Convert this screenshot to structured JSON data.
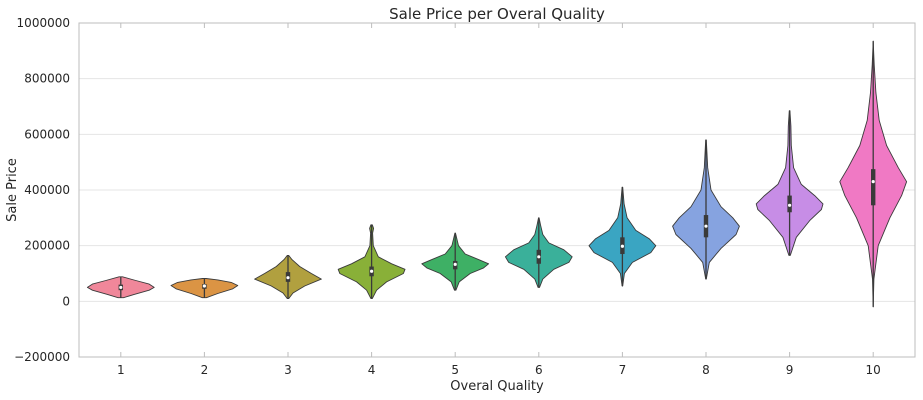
{
  "chart_data": {
    "type": "violin",
    "title": "Sale Price per Overal Quality",
    "xlabel": "Overal Quality",
    "ylabel": "Sale Price",
    "ylim": [
      -200000,
      1000000
    ],
    "yticks": [
      -200000,
      0,
      200000,
      400000,
      600000,
      800000,
      1000000
    ],
    "ytick_labels": [
      "−200000",
      "0",
      "200000",
      "400000",
      "600000",
      "800000",
      "1000000"
    ],
    "grid": "horizontal",
    "categories": [
      "1",
      "2",
      "3",
      "4",
      "5",
      "6",
      "7",
      "8",
      "9",
      "10"
    ],
    "series": [
      {
        "category": "1",
        "color": "#f0879a",
        "min": 13000,
        "q1": 40000,
        "median": 50000,
        "q3": 60000,
        "max": 88000,
        "profile": [
          [
            13000,
            0.08
          ],
          [
            25000,
            0.4
          ],
          [
            40000,
            0.85
          ],
          [
            50000,
            1.0
          ],
          [
            62000,
            0.85
          ],
          [
            75000,
            0.45
          ],
          [
            88000,
            0.05
          ]
        ]
      },
      {
        "category": "2",
        "color": "#db9444",
        "min": 13000,
        "q1": 45000,
        "median": 55000,
        "q3": 62000,
        "max": 82000,
        "profile": [
          [
            13000,
            0.06
          ],
          [
            28000,
            0.4
          ],
          [
            45000,
            0.85
          ],
          [
            57000,
            1.0
          ],
          [
            68000,
            0.8
          ],
          [
            77000,
            0.4
          ],
          [
            82000,
            0.05
          ]
        ]
      },
      {
        "category": "3",
        "color": "#b1a03f",
        "min": 10000,
        "q1": 70000,
        "median": 85000,
        "q3": 105000,
        "max": 165000,
        "profile": [
          [
            10000,
            0.02
          ],
          [
            30000,
            0.15
          ],
          [
            55000,
            0.5
          ],
          [
            80000,
            1.0
          ],
          [
            100000,
            0.7
          ],
          [
            125000,
            0.35
          ],
          [
            150000,
            0.12
          ],
          [
            165000,
            0.02
          ]
        ]
      },
      {
        "category": "4",
        "color": "#89b038",
        "min": 10000,
        "q1": 90000,
        "median": 108000,
        "q3": 125000,
        "max": 275000,
        "profile": [
          [
            10000,
            0.02
          ],
          [
            40000,
            0.15
          ],
          [
            70000,
            0.45
          ],
          [
            100000,
            0.95
          ],
          [
            115000,
            1.0
          ],
          [
            135000,
            0.6
          ],
          [
            160000,
            0.2
          ],
          [
            200000,
            0.05
          ],
          [
            245000,
            0.03
          ],
          [
            262000,
            0.06
          ],
          [
            275000,
            0.02
          ]
        ]
      },
      {
        "category": "5",
        "color": "#3eb065",
        "min": 40000,
        "q1": 115000,
        "median": 133000,
        "q3": 145000,
        "max": 245000,
        "profile": [
          [
            40000,
            0.02
          ],
          [
            70000,
            0.12
          ],
          [
            100000,
            0.45
          ],
          [
            120000,
            0.85
          ],
          [
            135000,
            1.0
          ],
          [
            150000,
            0.7
          ],
          [
            170000,
            0.3
          ],
          [
            200000,
            0.1
          ],
          [
            230000,
            0.04
          ],
          [
            245000,
            0.01
          ]
        ]
      },
      {
        "category": "6",
        "color": "#3ab09a",
        "min": 50000,
        "q1": 135000,
        "median": 160000,
        "q3": 185000,
        "max": 300000,
        "profile": [
          [
            50000,
            0.02
          ],
          [
            80000,
            0.12
          ],
          [
            115000,
            0.45
          ],
          [
            140000,
            0.9
          ],
          [
            160000,
            1.0
          ],
          [
            185000,
            0.75
          ],
          [
            210000,
            0.3
          ],
          [
            240000,
            0.12
          ],
          [
            275000,
            0.05
          ],
          [
            300000,
            0.01
          ]
        ]
      },
      {
        "category": "7",
        "color": "#3aa5c2",
        "min": 55000,
        "q1": 170000,
        "median": 198000,
        "q3": 230000,
        "max": 410000,
        "profile": [
          [
            55000,
            0.01
          ],
          [
            100000,
            0.06
          ],
          [
            140000,
            0.3
          ],
          [
            175000,
            0.85
          ],
          [
            200000,
            1.0
          ],
          [
            225000,
            0.8
          ],
          [
            255000,
            0.4
          ],
          [
            300000,
            0.14
          ],
          [
            350000,
            0.05
          ],
          [
            410000,
            0.01
          ]
        ]
      },
      {
        "category": "8",
        "color": "#86a3e0",
        "min": 80000,
        "q1": 230000,
        "median": 270000,
        "q3": 310000,
        "max": 580000,
        "profile": [
          [
            80000,
            0.01
          ],
          [
            140000,
            0.1
          ],
          [
            190000,
            0.45
          ],
          [
            240000,
            0.9
          ],
          [
            270000,
            1.0
          ],
          [
            300000,
            0.8
          ],
          [
            340000,
            0.45
          ],
          [
            400000,
            0.15
          ],
          [
            480000,
            0.05
          ],
          [
            580000,
            0.01
          ]
        ]
      },
      {
        "category": "9",
        "color": "#c78de6",
        "min": 165000,
        "q1": 320000,
        "median": 345000,
        "q3": 380000,
        "max": 685000,
        "profile": [
          [
            165000,
            0.02
          ],
          [
            230000,
            0.2
          ],
          [
            290000,
            0.6
          ],
          [
            330000,
            0.95
          ],
          [
            350000,
            1.0
          ],
          [
            380000,
            0.75
          ],
          [
            420000,
            0.35
          ],
          [
            480000,
            0.12
          ],
          [
            560000,
            0.05
          ],
          [
            630000,
            0.04
          ],
          [
            685000,
            0.01
          ]
        ]
      },
      {
        "category": "10",
        "color": "#f079c4",
        "min": -20000,
        "q1": 345000,
        "median": 430000,
        "q3": 475000,
        "max": 935000,
        "profile": [
          [
            -20000,
            0.0
          ],
          [
            80000,
            0.02
          ],
          [
            200000,
            0.15
          ],
          [
            300000,
            0.5
          ],
          [
            380000,
            0.85
          ],
          [
            430000,
            1.0
          ],
          [
            480000,
            0.75
          ],
          [
            560000,
            0.4
          ],
          [
            650000,
            0.18
          ],
          [
            750000,
            0.08
          ],
          [
            850000,
            0.03
          ],
          [
            935000,
            0.0
          ]
        ]
      }
    ]
  }
}
